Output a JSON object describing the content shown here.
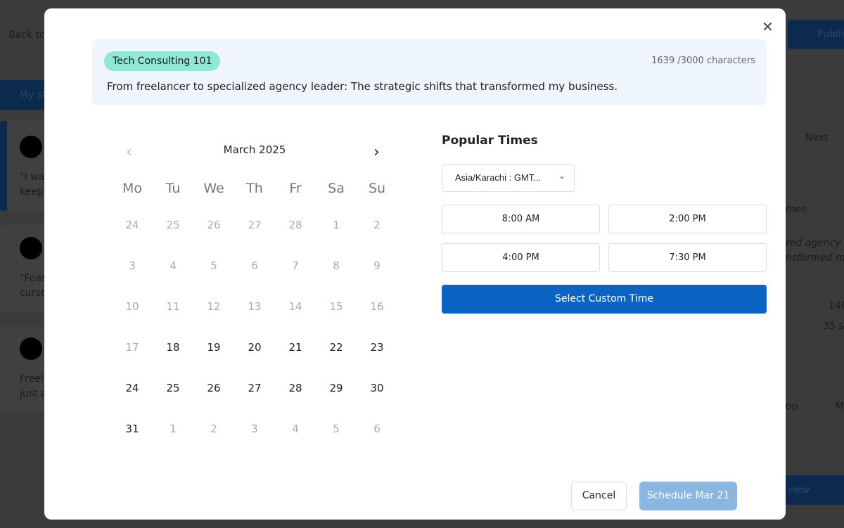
{
  "background": {
    "back_label": "Back to",
    "tab_label": "My st",
    "publish_label": "Publis",
    "next_label": "Next",
    "posts": [
      "\"I was",
      "keepi",
      "\"Feas",
      "curse",
      "Freel",
      "just a"
    ],
    "right_snippets": [
      "mes",
      "red agency le",
      "nsformed my",
      "140",
      "35 se",
      "op",
      "M",
      "view"
    ]
  },
  "modal": {
    "close_icon": "close-icon",
    "header": {
      "badge": "Tech Consulting 101",
      "char_count": "1639 /3000 characters",
      "text": "From freelancer to specialized agency leader: The strategic shifts that transformed my business."
    },
    "calendar": {
      "month": "March 2025",
      "prev_icon": "chevron-left-icon",
      "next_icon": "chevron-right-icon",
      "weekdays": [
        "Mo",
        "Tu",
        "We",
        "Th",
        "Fr",
        "Sa",
        "Su"
      ],
      "days": [
        {
          "d": "24",
          "muted": true
        },
        {
          "d": "25",
          "muted": true
        },
        {
          "d": "26",
          "muted": true
        },
        {
          "d": "27",
          "muted": true
        },
        {
          "d": "28",
          "muted": true
        },
        {
          "d": "1",
          "muted": true
        },
        {
          "d": "2",
          "muted": true
        },
        {
          "d": "3",
          "muted": true
        },
        {
          "d": "4",
          "muted": true
        },
        {
          "d": "5",
          "muted": true
        },
        {
          "d": "6",
          "muted": true
        },
        {
          "d": "7",
          "muted": true
        },
        {
          "d": "8",
          "muted": true
        },
        {
          "d": "9",
          "muted": true
        },
        {
          "d": "10",
          "muted": true
        },
        {
          "d": "11",
          "muted": true
        },
        {
          "d": "12",
          "muted": true
        },
        {
          "d": "13",
          "muted": true
        },
        {
          "d": "14",
          "muted": true
        },
        {
          "d": "15",
          "muted": true
        },
        {
          "d": "16",
          "muted": true
        },
        {
          "d": "17",
          "muted": true
        },
        {
          "d": "18",
          "muted": false
        },
        {
          "d": "19",
          "muted": false
        },
        {
          "d": "20",
          "muted": false
        },
        {
          "d": "21",
          "muted": false
        },
        {
          "d": "22",
          "muted": false
        },
        {
          "d": "23",
          "muted": false
        },
        {
          "d": "24",
          "muted": false
        },
        {
          "d": "25",
          "muted": false
        },
        {
          "d": "26",
          "muted": false
        },
        {
          "d": "27",
          "muted": false
        },
        {
          "d": "28",
          "muted": false
        },
        {
          "d": "29",
          "muted": false
        },
        {
          "d": "30",
          "muted": false
        },
        {
          "d": "31",
          "muted": false
        },
        {
          "d": "1",
          "muted": true
        },
        {
          "d": "2",
          "muted": true
        },
        {
          "d": "3",
          "muted": true
        },
        {
          "d": "4",
          "muted": true
        },
        {
          "d": "5",
          "muted": true
        },
        {
          "d": "6",
          "muted": true
        }
      ]
    },
    "popular_times": {
      "title": "Popular Times",
      "timezone": "Asia/Karachi : GMT...",
      "times": [
        "8:00 AM",
        "2:00 PM",
        "4:00 PM",
        "7:30 PM"
      ],
      "custom_label": "Select Custom Time"
    },
    "footer": {
      "cancel": "Cancel",
      "schedule": "Schedule Mar 21"
    },
    "colors": {
      "primary": "#0a64c2",
      "disabled": "#8bb6e2",
      "badge": "#8fe7d6",
      "header_bg": "#eef5fd"
    }
  }
}
